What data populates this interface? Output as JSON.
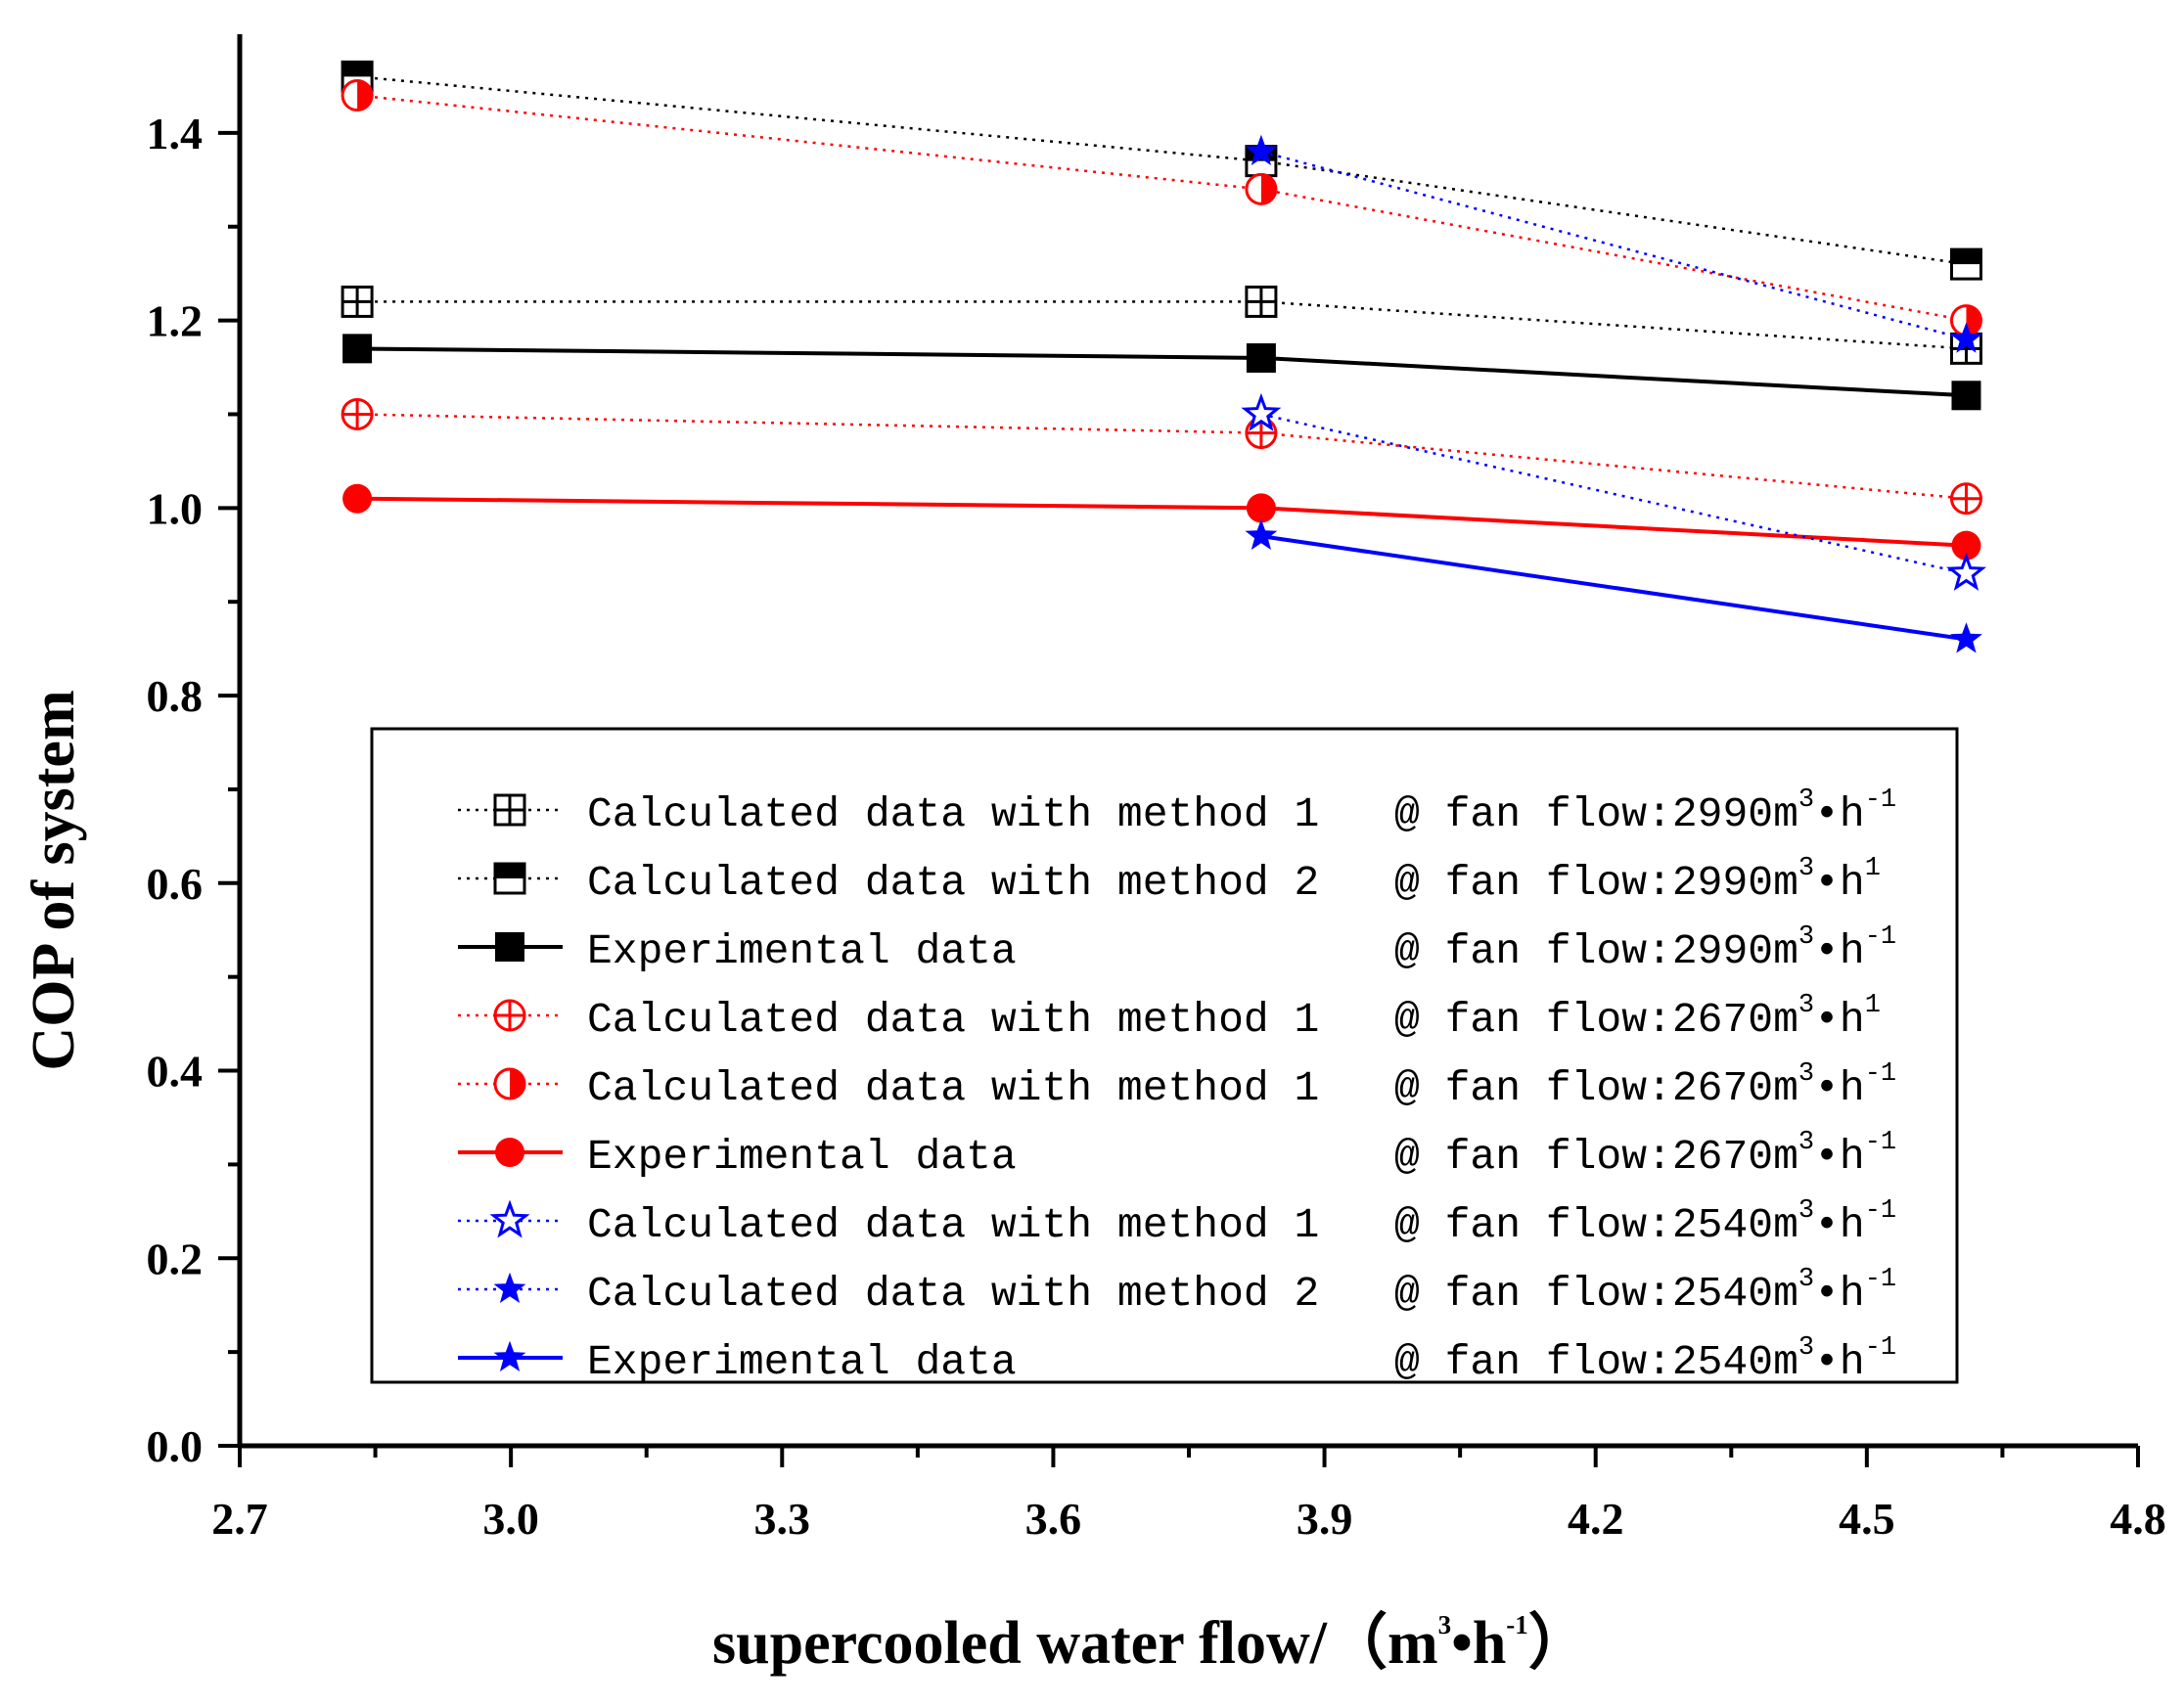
{
  "chart_data": {
    "type": "line",
    "title": "",
    "xlabel": "supercooled water flow/（m³•h⁻¹）",
    "xlabel_parts": {
      "text": "supercooled water flow/（m",
      "exp1": "3",
      "dot": "•h",
      "exp2": "-1",
      "close": "）"
    },
    "ylabel": "COP of system",
    "xlim": [
      2.7,
      4.8
    ],
    "ylim": [
      0.0,
      1.5
    ],
    "xticks": [
      "2.7",
      "3.0",
      "3.3",
      "3.6",
      "3.9",
      "4.2",
      "4.5",
      "4.8"
    ],
    "yticks": [
      "0.0",
      "0.2",
      "0.4",
      "0.6",
      "0.8",
      "1.0",
      "1.2",
      "1.4"
    ],
    "x": [
      2.83,
      3.83,
      4.61
    ],
    "legend_position": "lower-center inside",
    "series": [
      {
        "name": "Calculated data with method 1",
        "condition": "@ fan flow:2990m",
        "exp1": "3",
        "unit": "•h",
        "exp2": "-1",
        "color": "#000000",
        "line": "dotted",
        "marker": "square-cross",
        "x": [
          2.83,
          3.83,
          4.61
        ],
        "values": [
          1.22,
          1.22,
          1.17
        ]
      },
      {
        "name": "Calculated data with method 2",
        "condition": "@ fan flow:2990m",
        "exp1": "3",
        "unit": "•h",
        "exp2": "1",
        "color": "#000000",
        "line": "dotted",
        "marker": "square-half",
        "x": [
          2.83,
          3.83,
          4.61
        ],
        "values": [
          1.46,
          1.37,
          1.26
        ]
      },
      {
        "name": "Experimental  data",
        "condition": "@ fan flow:2990m",
        "exp1": "3",
        "unit": "•h",
        "exp2": "-1",
        "color": "#000000",
        "line": "solid",
        "marker": "square-filled",
        "x": [
          2.83,
          3.83,
          4.61
        ],
        "values": [
          1.17,
          1.16,
          1.12
        ]
      },
      {
        "name": "Calculated data with method 1",
        "condition": "@ fan flow:2670m",
        "exp1": "3",
        "unit": "•h",
        "exp2": "1",
        "color": "#ff0000",
        "line": "dotted",
        "marker": "circle-cross",
        "x": [
          2.83,
          3.83,
          4.61
        ],
        "values": [
          1.1,
          1.08,
          1.01
        ]
      },
      {
        "name": "Calculated data with method 1",
        "condition": "@ fan flow:2670m",
        "exp1": "3",
        "unit": "•h",
        "exp2": "-1",
        "color": "#ff0000",
        "line": "dotted",
        "marker": "circle-half",
        "x": [
          2.83,
          3.83,
          4.61
        ],
        "values": [
          1.44,
          1.34,
          1.2
        ]
      },
      {
        "name": "Experimental  data",
        "condition": "@ fan flow:2670m",
        "exp1": "3",
        "unit": "•h",
        "exp2": "-1",
        "color": "#ff0000",
        "line": "solid",
        "marker": "circle-filled",
        "x": [
          2.83,
          3.83,
          4.61
        ],
        "values": [
          1.01,
          1.0,
          0.96
        ]
      },
      {
        "name": "Calculated data with method 1",
        "condition": "@ fan flow:2540m",
        "exp1": "3",
        "unit": "•h",
        "exp2": "-1",
        "color": "#0000ff",
        "line": "dotted",
        "marker": "star-open",
        "x": [
          3.83,
          4.61
        ],
        "values": [
          1.1,
          0.93
        ]
      },
      {
        "name": "Calculated data with method 2",
        "condition": "@ fan flow:2540m",
        "exp1": "3",
        "unit": "•h",
        "exp2": "-1",
        "color": "#0000ff",
        "line": "dotted",
        "marker": "star-filled",
        "x": [
          3.83,
          4.61
        ],
        "values": [
          1.38,
          1.18
        ]
      },
      {
        "name": "Experimental  data",
        "condition": "@ fan flow:2540m",
        "exp1": "3",
        "unit": "•h",
        "exp2": "-1",
        "color": "#0000ff",
        "line": "solid",
        "marker": "star-filled",
        "x": [
          3.83,
          4.61
        ],
        "values": [
          0.97,
          0.86
        ]
      }
    ]
  }
}
